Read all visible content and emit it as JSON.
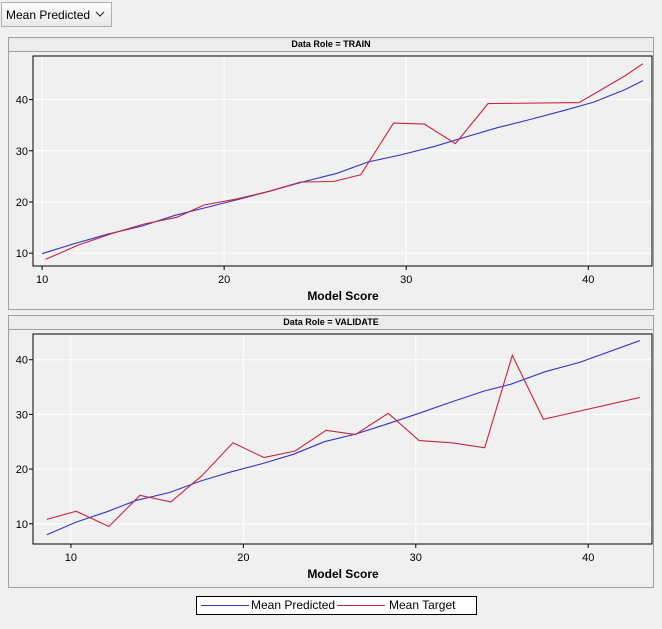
{
  "toolbar": {
    "select_value": "Mean Predicted",
    "caret_icon": "chevron-down-icon"
  },
  "colors": {
    "predicted": "#3333cc",
    "target": "#c8233c",
    "plot_bg": "#f0f0f0",
    "grid": "#ffffff"
  },
  "chart_data": [
    {
      "type": "line",
      "title": "Data Role = TRAIN",
      "xlabel": "Model Score",
      "ylabel": "",
      "xlim": [
        9.5,
        43.5
      ],
      "ylim": [
        7.5,
        48.5
      ],
      "xticks": [
        10,
        20,
        30,
        40
      ],
      "yticks": [
        10,
        20,
        30,
        40
      ],
      "grid": true,
      "series": [
        {
          "name": "Mean Predicted",
          "color": "#3333cc",
          "x": [
            10,
            11.7,
            13.6,
            15.5,
            17.3,
            19.1,
            20.9,
            22.6,
            24.4,
            26.2,
            27.9,
            29.7,
            31.5,
            33.2,
            35,
            36.8,
            38.6,
            40.3,
            42,
            43
          ],
          "y": [
            9.9,
            11.8,
            13.7,
            15.3,
            17.4,
            19.0,
            20.6,
            22.2,
            24.0,
            25.6,
            27.8,
            29.2,
            30.8,
            32.6,
            34.5,
            36.1,
            37.8,
            39.5,
            41.9,
            43.7
          ]
        },
        {
          "name": "Mean Target",
          "color": "#c8233c",
          "x": [
            10.2,
            12.0,
            13.8,
            15.6,
            17.4,
            18.9,
            20.7,
            22.5,
            24.2,
            26.0,
            27.5,
            29.3,
            31.0,
            32.7,
            34.5,
            39.5,
            42,
            43
          ],
          "y": [
            8.8,
            11.6,
            13.8,
            15.7,
            17.0,
            19.4,
            20.6,
            22.1,
            23.9,
            24.0,
            25.3,
            35.4,
            35.2,
            31.4,
            39.2,
            39.4,
            44.6,
            47.0
          ]
        }
      ]
    },
    {
      "type": "line",
      "title": "Data Role = VALIDATE",
      "xlabel": "Model Score",
      "ylabel": "",
      "xlim": [
        7.8,
        43.7
      ],
      "ylim": [
        6.3,
        44.7
      ],
      "xticks": [
        10,
        20,
        30,
        40
      ],
      "yticks": [
        10,
        20,
        30,
        40
      ],
      "grid": true,
      "series": [
        {
          "name": "Mean Predicted",
          "color": "#3333cc",
          "x": [
            8.6,
            10.3,
            12.1,
            13.8,
            15.7,
            17.5,
            19.3,
            21.1,
            22.9,
            24.7,
            26.5,
            28.3,
            30.1,
            32.0,
            33.9,
            35.5,
            37.5,
            39.5,
            43
          ],
          "y": [
            8.0,
            10.3,
            12.2,
            14.3,
            15.7,
            17.8,
            19.5,
            21.0,
            22.7,
            25.0,
            26.4,
            28.2,
            30.1,
            32.2,
            34.2,
            35.5,
            37.8,
            39.5,
            43.5
          ]
        },
        {
          "name": "Mean Target",
          "color": "#c8233c",
          "x": [
            8.6,
            10.3,
            12.2,
            14.0,
            15.8,
            17.6,
            19.4,
            21.2,
            23.0,
            24.8,
            26.5,
            28.4,
            30.2,
            32.1,
            34.0,
            35.6,
            37.4,
            43
          ],
          "y": [
            10.8,
            12.3,
            9.5,
            15.2,
            14.0,
            18.8,
            24.8,
            22.1,
            23.3,
            27.1,
            26.3,
            30.2,
            25.2,
            24.8,
            23.9,
            40.8,
            29.1,
            33.1
          ]
        }
      ]
    }
  ],
  "legend": [
    {
      "label": "Mean Predicted",
      "color": "#3333cc"
    },
    {
      "label": "Mean Target",
      "color": "#c8233c"
    }
  ]
}
